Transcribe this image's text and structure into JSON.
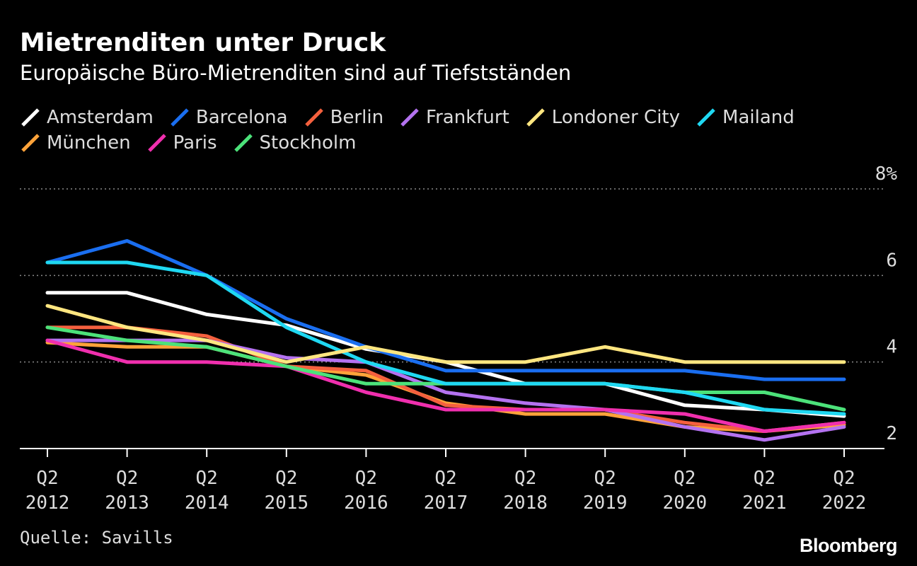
{
  "header": {
    "title": "Mietrenditen unter Druck",
    "subtitle": "Europäische Büro-Mietrenditen sind auf Tiefstständen"
  },
  "footer": {
    "source": "Quelle: Savills",
    "brand": "Bloomberg"
  },
  "chart_data": {
    "type": "line",
    "title": "Mietrenditen unter Druck",
    "subtitle": "Europäische Büro-Mietrenditen sind auf Tiefstständen",
    "xlabel": "",
    "ylabel": "",
    "categories": [
      [
        "Q2",
        "2012"
      ],
      [
        "Q2",
        "2013"
      ],
      [
        "Q2",
        "2014"
      ],
      [
        "Q2",
        "2015"
      ],
      [
        "Q2",
        "2016"
      ],
      [
        "Q2",
        "2017"
      ],
      [
        "Q2",
        "2018"
      ],
      [
        "Q2",
        "2019"
      ],
      [
        "Q2",
        "2020"
      ],
      [
        "Q2",
        "2021"
      ],
      [
        "Q2",
        "2022"
      ]
    ],
    "ylim": [
      2,
      8
    ],
    "yticks": [
      {
        "value": 8,
        "label": "8%"
      },
      {
        "value": 6,
        "label": "6"
      },
      {
        "value": 4,
        "label": "4"
      },
      {
        "value": 2,
        "label": "2"
      }
    ],
    "y_axis_side": "right",
    "grid": "dotted horizontal",
    "legend_placement": "top",
    "legend_rows": [
      [
        "Amsterdam",
        "Barcelona",
        "Berlin",
        "Frankfurt",
        "Londoner City",
        "Mailand"
      ],
      [
        "München",
        "Paris",
        "Stockholm"
      ]
    ],
    "series": [
      {
        "name": "Amsterdam",
        "color": "#ffffff",
        "values": [
          5.6,
          5.6,
          5.1,
          4.85,
          4.3,
          4.0,
          3.5,
          3.5,
          3.0,
          2.9,
          2.75
        ]
      },
      {
        "name": "Barcelona",
        "color": "#1a6ef0",
        "values": [
          6.3,
          6.8,
          6.0,
          5.0,
          4.35,
          3.8,
          3.8,
          3.8,
          3.8,
          3.6,
          3.6
        ]
      },
      {
        "name": "Berlin",
        "color": "#f4603e",
        "values": [
          4.8,
          4.8,
          4.6,
          3.9,
          3.8,
          3.0,
          2.9,
          2.9,
          2.6,
          2.4,
          2.6
        ]
      },
      {
        "name": "Frankfurt",
        "color": "#b472f0",
        "values": [
          4.5,
          4.5,
          4.5,
          4.1,
          4.0,
          3.3,
          3.05,
          2.9,
          2.5,
          2.2,
          2.5
        ]
      },
      {
        "name": "Londoner City",
        "color": "#ffe680",
        "values": [
          5.3,
          4.8,
          4.5,
          4.0,
          4.35,
          4.0,
          4.0,
          4.35,
          4.0,
          4.0,
          4.0
        ]
      },
      {
        "name": "Mailand",
        "color": "#1fd8f2",
        "values": [
          6.3,
          6.3,
          6.0,
          4.8,
          4.0,
          3.5,
          3.5,
          3.5,
          3.3,
          2.9,
          2.8
        ]
      },
      {
        "name": "München",
        "color": "#ffa33a",
        "values": [
          4.45,
          4.35,
          4.35,
          3.9,
          3.7,
          3.05,
          2.8,
          2.8,
          2.5,
          2.4,
          2.55
        ]
      },
      {
        "name": "Paris",
        "color": "#f02fae",
        "values": [
          4.5,
          4.0,
          4.0,
          3.9,
          3.3,
          2.9,
          2.9,
          2.9,
          2.8,
          2.4,
          2.6
        ]
      },
      {
        "name": "Stockholm",
        "color": "#4ce27a",
        "values": [
          4.8,
          4.5,
          4.35,
          3.9,
          3.5,
          3.5,
          3.5,
          3.5,
          3.3,
          3.3,
          2.9
        ]
      }
    ]
  }
}
